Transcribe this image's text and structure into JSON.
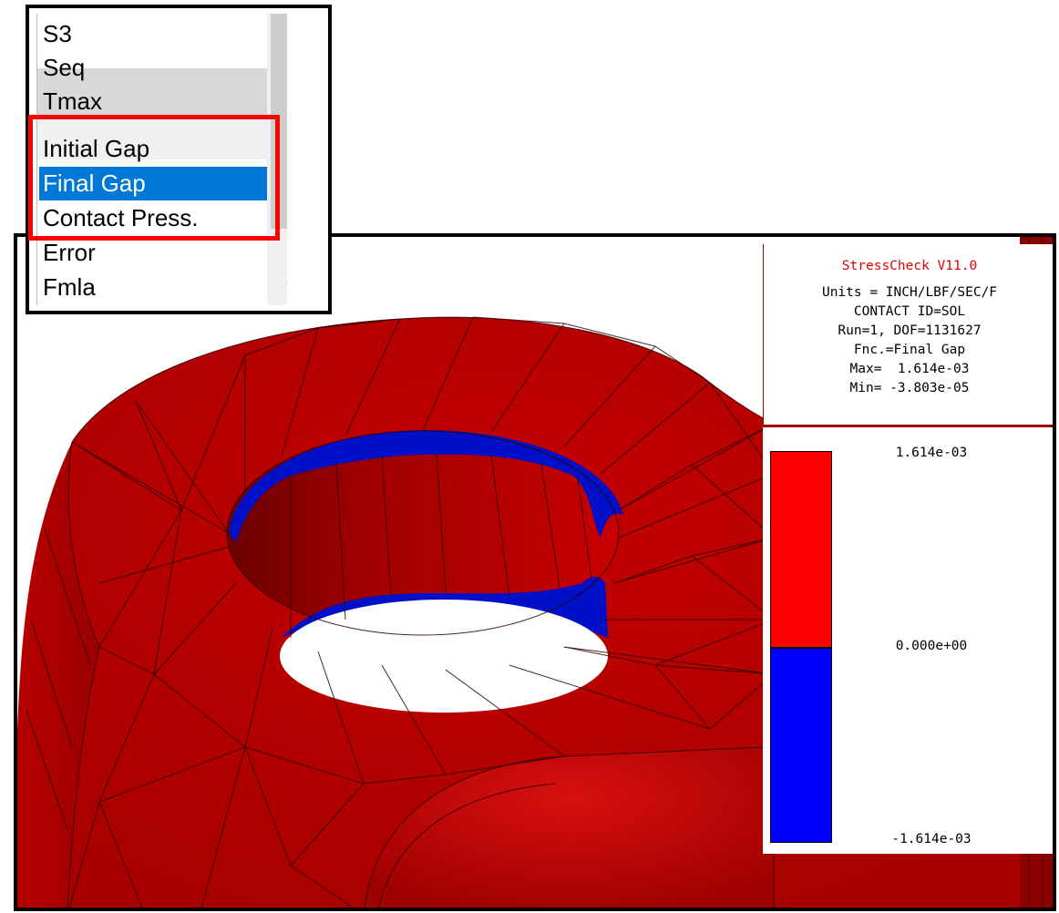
{
  "dropdown": {
    "items": [
      "S3",
      "Seq",
      "Tmax",
      "Initial Gap",
      "Final Gap",
      "Contact Press.",
      "Error",
      "Fmla"
    ],
    "selected": "Final Gap",
    "scroll_down_glyph": "⌄",
    "highlighted_items": [
      "Initial Gap",
      "Final Gap",
      "Contact Press."
    ]
  },
  "info_panel": {
    "title": "StressCheck V11.0",
    "units": "Units = INCH/LBF/SEC/F",
    "contact": "CONTACT ID=SOL",
    "run": "Run=1, DOF=1131627",
    "function": "Fnc.=Final Gap",
    "max": "Max=  1.614e-03",
    "min": "Min= -3.803e-05"
  },
  "legend": {
    "top_label": "1.614e-03",
    "mid_label": "0.000e+00",
    "bottom_label": "-1.614e-03",
    "positive_color": "#ff0000",
    "negative_color": "#0000ff"
  },
  "colors": {
    "part_red": "#c00000",
    "contact_blue": "#0010c8",
    "highlight": "#ff0000",
    "selection": "#0078d7"
  }
}
